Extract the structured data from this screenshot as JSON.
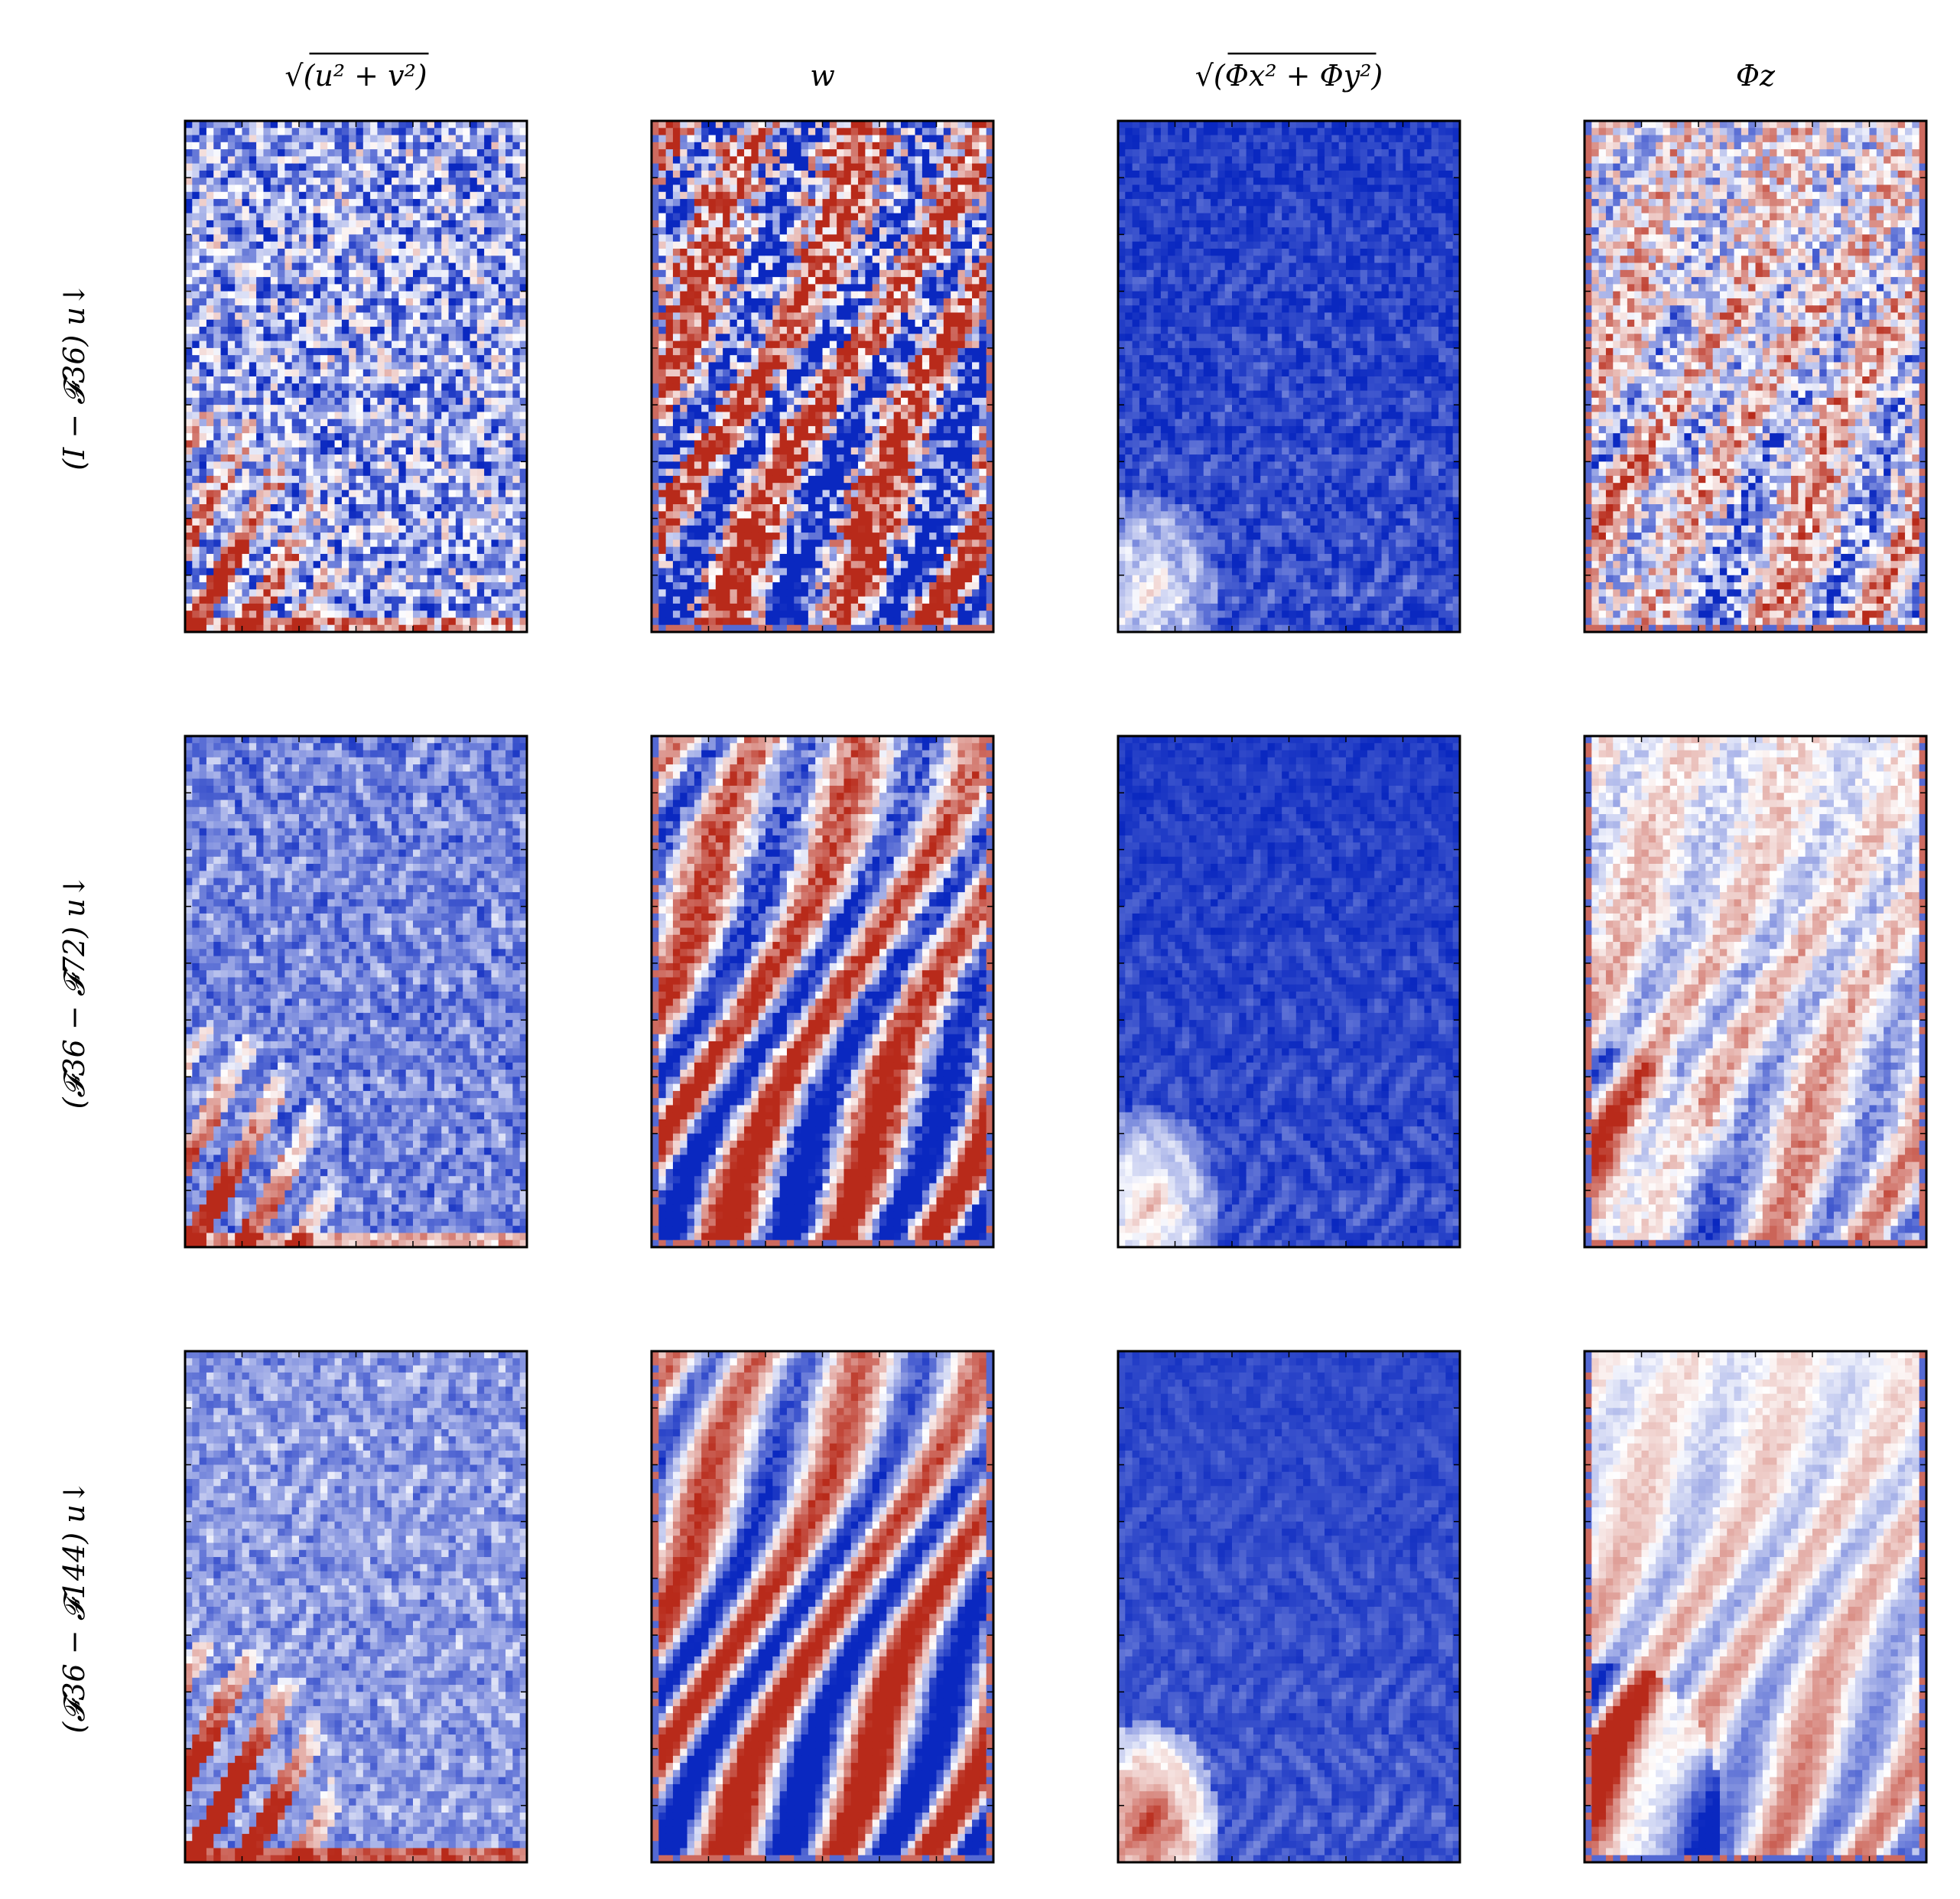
{
  "chart_data": {
    "type": "heatmap",
    "title": "",
    "colormap": {
      "low": "#0a28c0",
      "mid": "#ffffff",
      "high": "#b82a1a"
    },
    "grid": false,
    "columns": [
      {
        "title_root": "u² + v²",
        "title": "√(u² + v²)"
      },
      {
        "title_root": "",
        "title": "w"
      },
      {
        "title_root": "Φx² + Φy²",
        "title": "√(Φx² + Φy²)"
      },
      {
        "title_root": "",
        "title": "Φz"
      }
    ],
    "rows": [
      {
        "label": "(I − 𝓕36) u↓"
      },
      {
        "label": "(𝓕36 − 𝓕72) u↓"
      },
      {
        "label": "(𝓕36 − 𝓕144) u↓"
      }
    ],
    "panels": [
      {
        "row": 0,
        "col": 0,
        "pattern": "speed",
        "grain": 0.85,
        "blob": 0.55,
        "base": -0.55
      },
      {
        "row": 0,
        "col": 1,
        "pattern": "stripe",
        "grain": 0.95,
        "blob": 0.0,
        "base": 0.0
      },
      {
        "row": 0,
        "col": 2,
        "pattern": "grad",
        "grain": 0.25,
        "blob": 0.35,
        "base": -0.95
      },
      {
        "row": 0,
        "col": 3,
        "pattern": "stripe",
        "grain": 0.55,
        "blob": 0.35,
        "base": 0.0
      },
      {
        "row": 1,
        "col": 0,
        "pattern": "speed",
        "grain": 0.35,
        "blob": 0.6,
        "base": -0.7
      },
      {
        "row": 1,
        "col": 1,
        "pattern": "stripe",
        "grain": 0.3,
        "blob": 0.0,
        "base": 0.0
      },
      {
        "row": 1,
        "col": 2,
        "pattern": "grad",
        "grain": 0.12,
        "blob": 0.45,
        "base": -0.95
      },
      {
        "row": 1,
        "col": 3,
        "pattern": "stripe",
        "grain": 0.2,
        "blob": 0.55,
        "base": 0.0
      },
      {
        "row": 2,
        "col": 0,
        "pattern": "speed",
        "grain": 0.3,
        "blob": 0.8,
        "base": -0.6
      },
      {
        "row": 2,
        "col": 1,
        "pattern": "stripe",
        "grain": 0.15,
        "blob": 0.0,
        "base": 0.0
      },
      {
        "row": 2,
        "col": 2,
        "pattern": "grad",
        "grain": 0.1,
        "blob": 0.7,
        "base": -0.9
      },
      {
        "row": 2,
        "col": 3,
        "pattern": "stripe",
        "grain": 0.1,
        "blob": 0.9,
        "base": 0.0
      }
    ]
  }
}
